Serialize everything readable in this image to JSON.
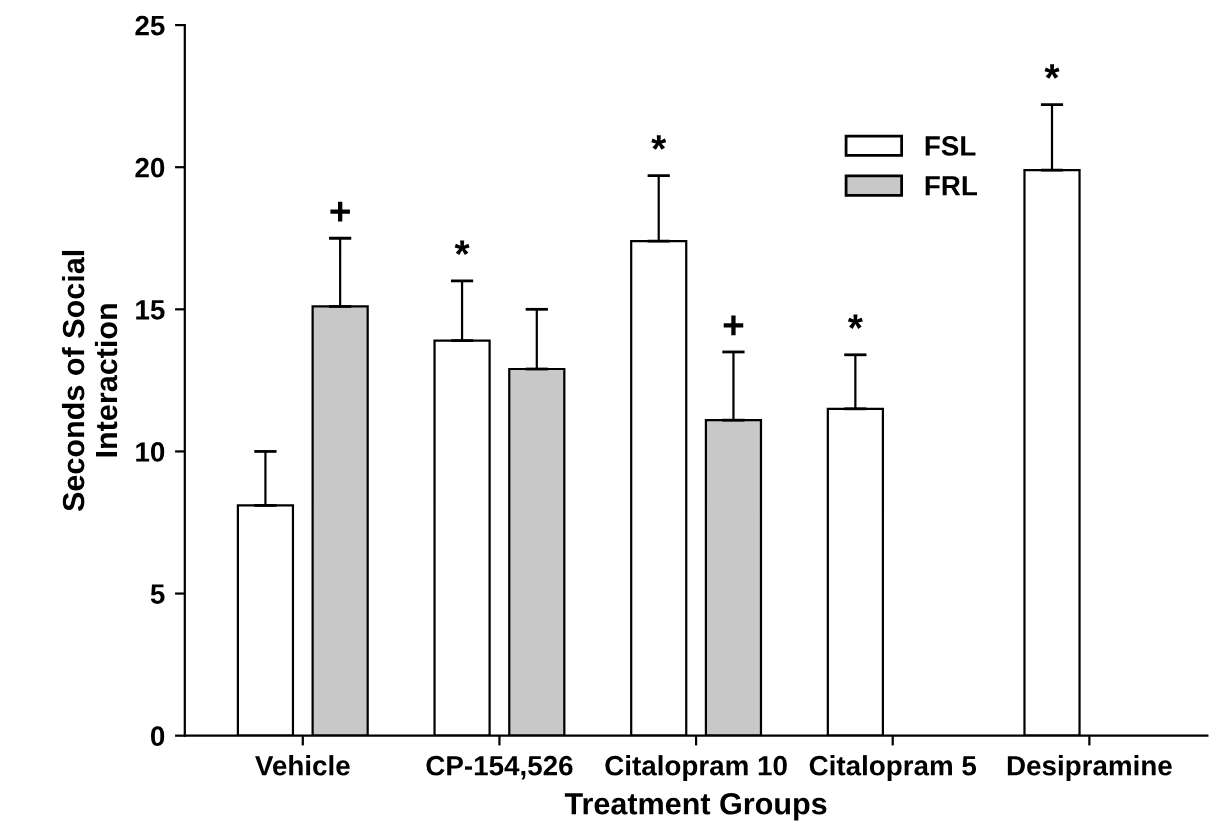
{
  "chart_data": {
    "type": "bar",
    "xlabel": "Treatment Groups",
    "ylabel": "Seconds of Social\nInteraction",
    "categories": [
      "Vehicle",
      "CP-154,526",
      "Citalopram 10",
      "Citalopram 5",
      "Desipramine"
    ],
    "series": [
      {
        "name": "FSL",
        "color": "#ffffff",
        "values": [
          8.1,
          13.9,
          17.4,
          11.5,
          19.9
        ],
        "value_labels": [
          null,
          "*",
          "*",
          "*",
          "*"
        ],
        "errors": [
          [
            8.1,
            10.0
          ],
          [
            13.9,
            16.0
          ],
          [
            17.4,
            19.7
          ],
          [
            11.5,
            13.4
          ],
          [
            19.9,
            22.2
          ]
        ]
      },
      {
        "name": "FRL",
        "color": "#c8c8c8",
        "values": [
          15.1,
          12.9,
          11.1,
          null,
          null
        ],
        "value_labels": [
          "+",
          null,
          "+",
          null,
          null
        ],
        "errors": [
          [
            15.1,
            17.5
          ],
          [
            12.9,
            15.0
          ],
          [
            11.1,
            13.5
          ],
          null,
          null
        ]
      }
    ],
    "ylim": [
      0,
      25
    ],
    "yticks": [
      0,
      5,
      10,
      15,
      20,
      25
    ],
    "grid": false,
    "legend": "top right"
  }
}
